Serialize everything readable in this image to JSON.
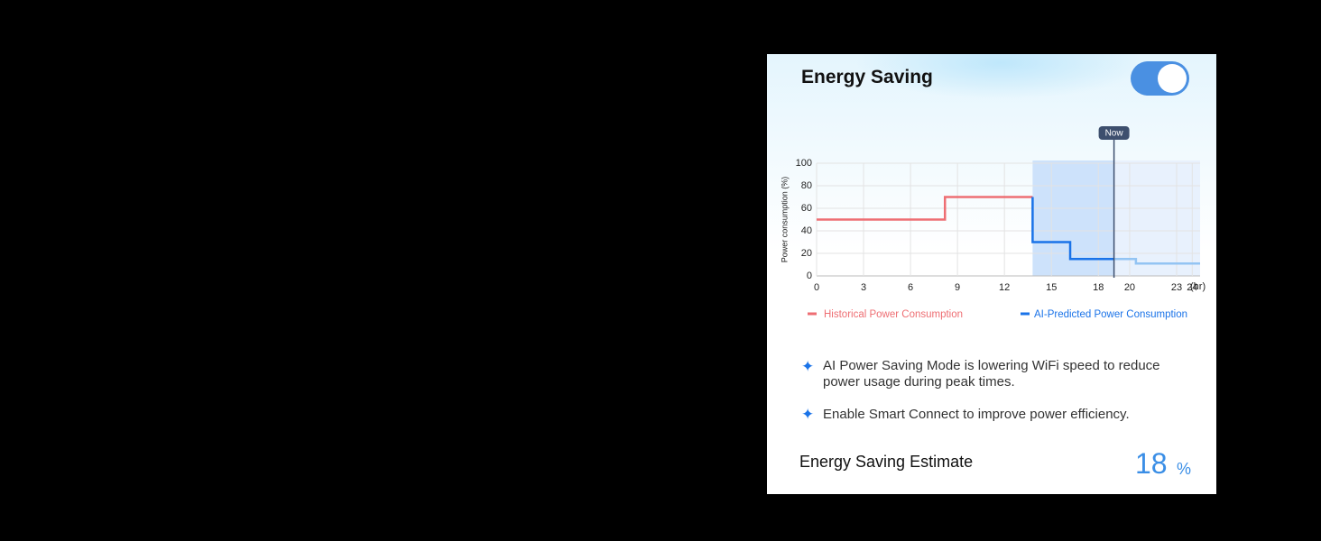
{
  "header": {
    "title": "Energy Saving",
    "toggle_on": true
  },
  "chart_data": {
    "type": "line",
    "y_label": "Power consumption  (%)",
    "x_unit": "(hr)",
    "xlim": [
      0,
      24.5
    ],
    "xticks": [
      0,
      3,
      6,
      9,
      12,
      15,
      18,
      20,
      23,
      24
    ],
    "ylim": [
      0,
      100
    ],
    "yticks": [
      0,
      20,
      40,
      60,
      80,
      100
    ],
    "grid": true,
    "series": [
      {
        "name": "Historical Power Consumption",
        "color": "#ee6e73",
        "x": [
          0,
          8.2,
          8.2,
          13.8
        ],
        "values": [
          50,
          50,
          70,
          70
        ]
      },
      {
        "name": "AI-Predicted Power Consumption",
        "color": "#1a73e8",
        "x": [
          13.8,
          13.8,
          16.2,
          16.2,
          19
        ],
        "values": [
          70,
          30,
          30,
          15,
          15
        ]
      },
      {
        "color": "#93c4f3",
        "x": [
          19,
          20.4,
          20.4,
          24.5
        ],
        "values": [
          15,
          15,
          11,
          11
        ]
      }
    ],
    "shaded": [
      {
        "x": [
          13.8,
          19
        ],
        "color": "#cde2fb"
      },
      {
        "x": [
          19,
          24.5
        ],
        "color": "#e8f1fd"
      }
    ],
    "now": {
      "label": "Now",
      "x": 19
    }
  },
  "tips": [
    "AI Power Saving Mode is lowering WiFi speed to reduce power usage during peak times.",
    "Enable Smart Connect to improve power efficiency."
  ],
  "estimate": {
    "label": "Energy Saving Estimate",
    "value": 18,
    "unit": "%"
  }
}
